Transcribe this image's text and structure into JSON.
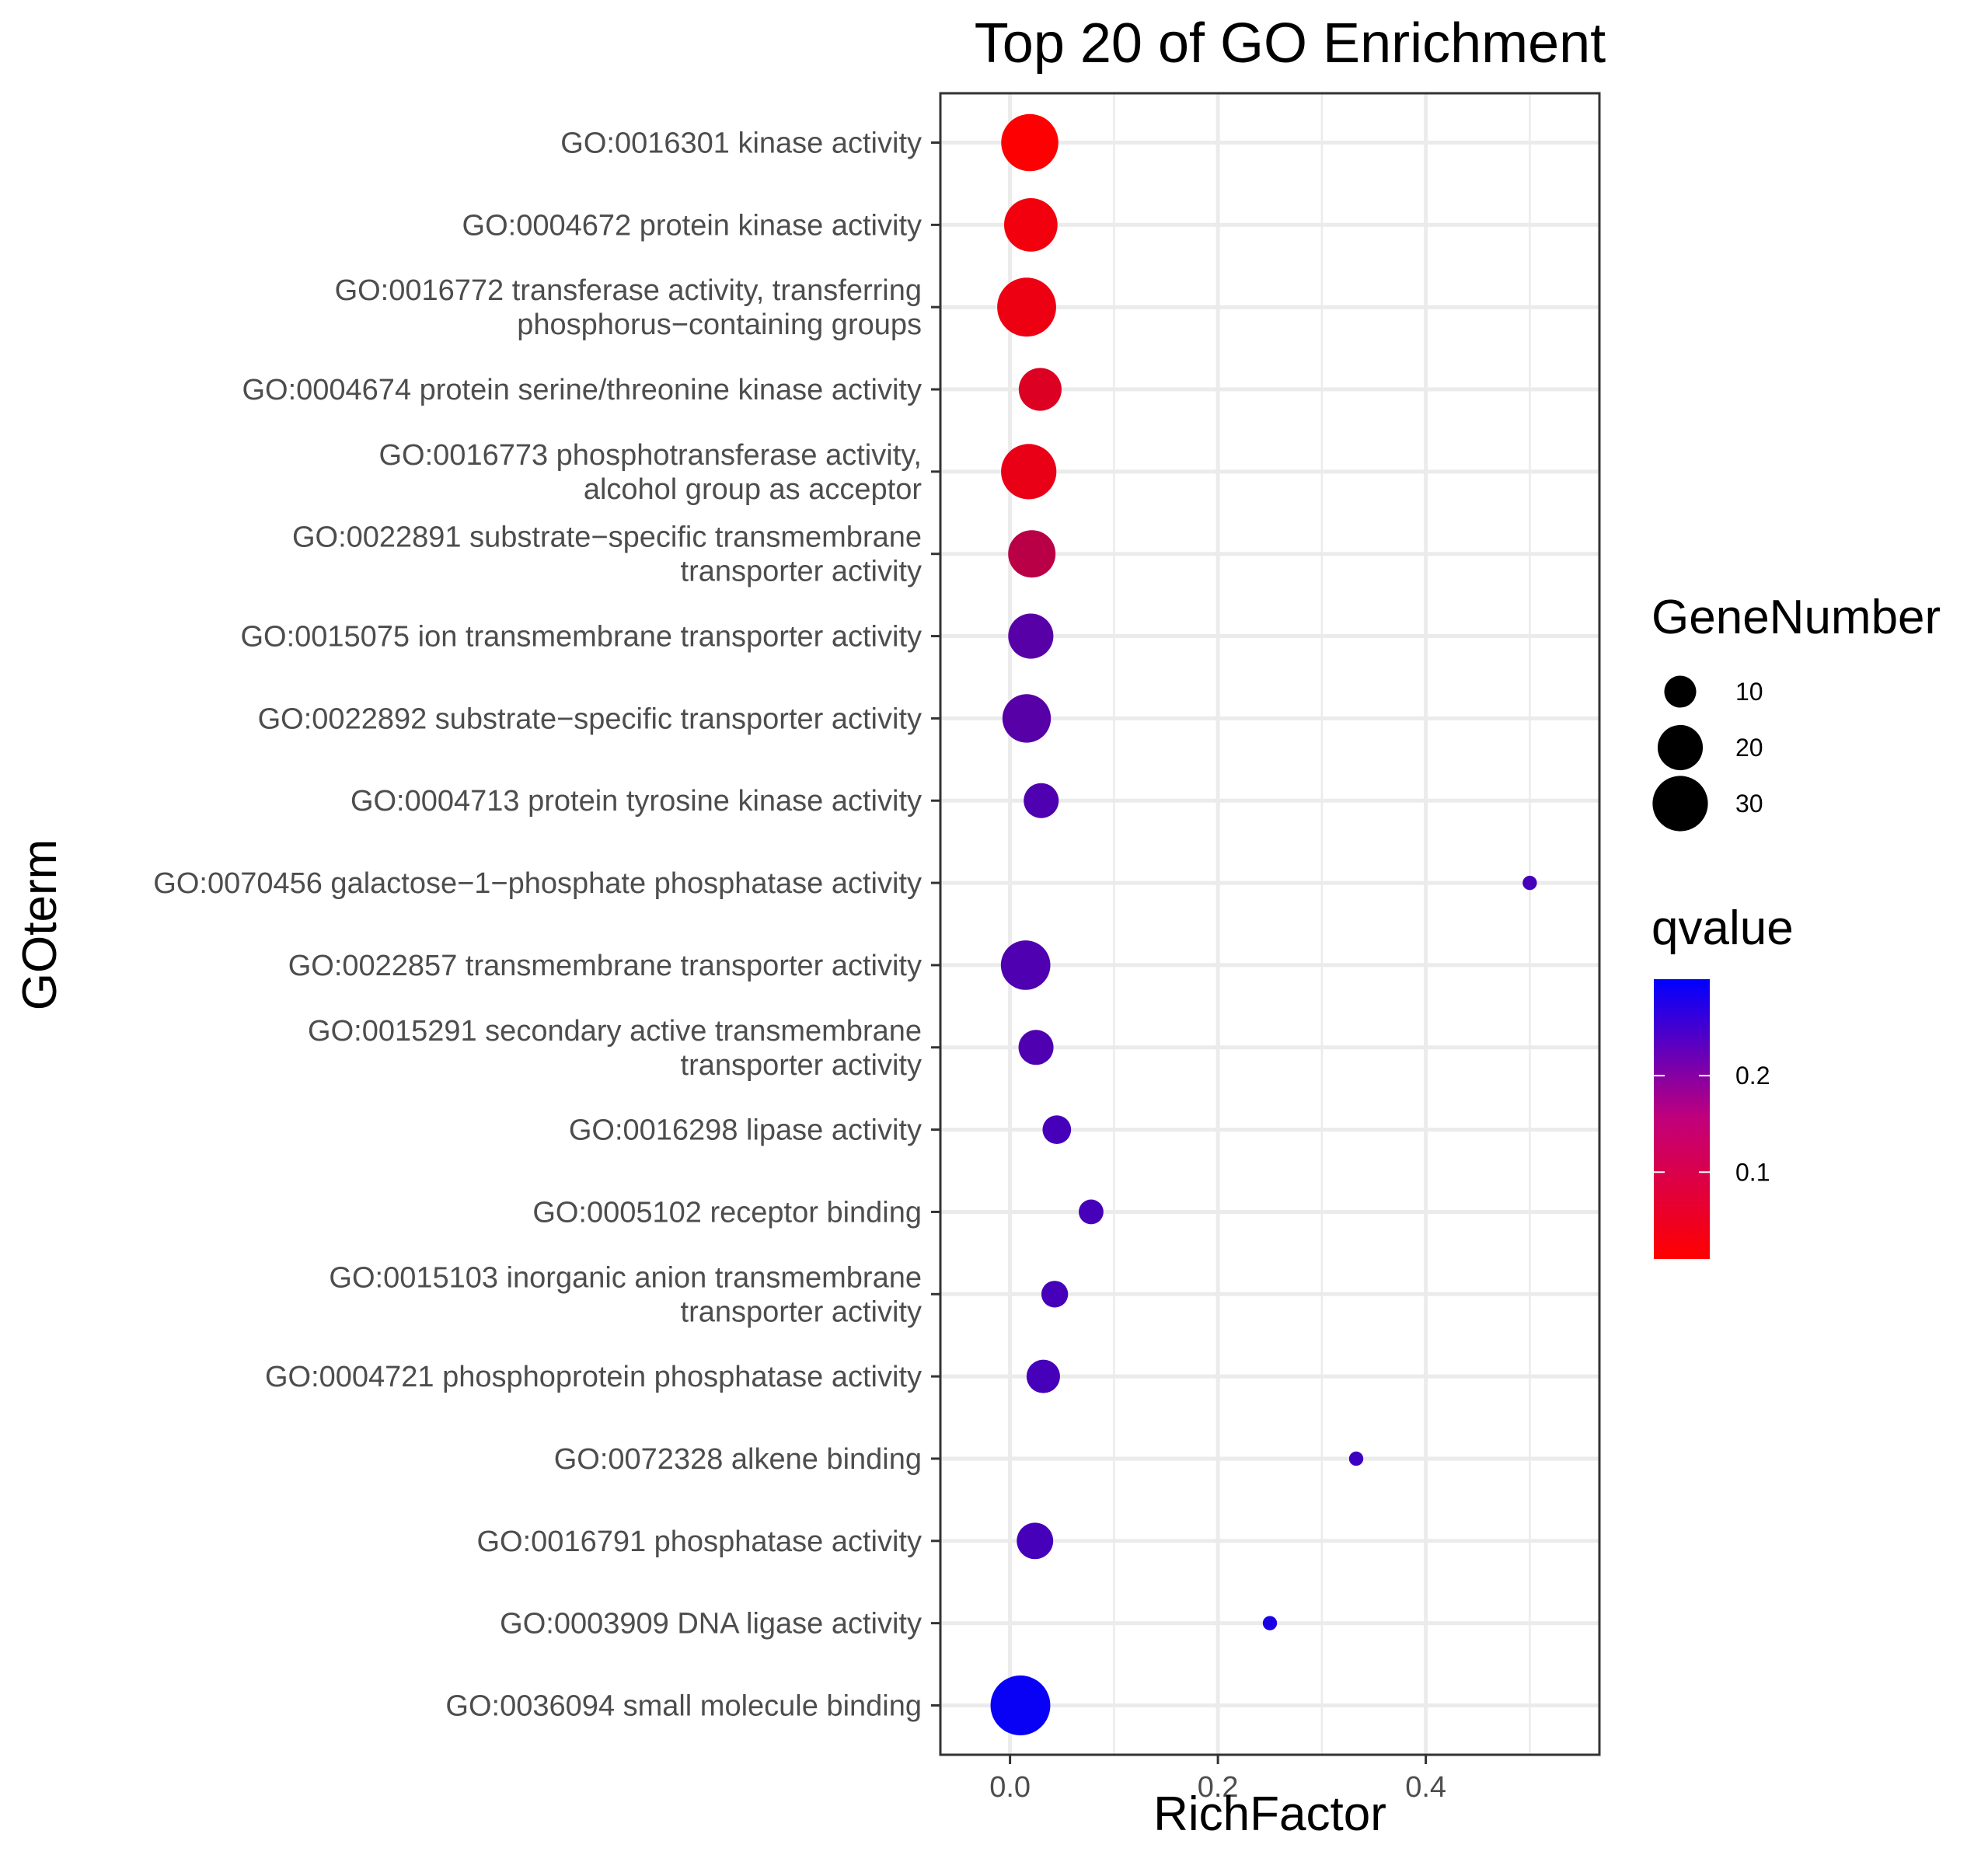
{
  "chart_data": {
    "type": "scatter",
    "title": "Top 20 of GO Enrichment",
    "xlabel": "RichFactor",
    "ylabel": "GOterm",
    "xlim": [
      -0.067,
      0.567
    ],
    "x_ticks": [
      0.0,
      0.2,
      0.4
    ],
    "x_tick_labels": [
      "0.0",
      "0.2",
      "0.4"
    ],
    "grid": true,
    "legend_placement": "right",
    "size_legend": {
      "title": "GeneNumber",
      "values": [
        10,
        20,
        30
      ],
      "labels": [
        "10",
        "20",
        "30"
      ]
    },
    "color_legend": {
      "title": "qvalue",
      "range": [
        0.01,
        0.3
      ],
      "ticks": [
        0.1,
        0.2
      ],
      "tick_labels": [
        "0.1",
        "0.2"
      ],
      "low_color": "#ff0000",
      "high_color": "#0000ff"
    },
    "points": [
      {
        "term": [
          "GO:0016301 kinase activity"
        ],
        "x": 0.019,
        "gene_number": 32,
        "qvalue": 0.012
      },
      {
        "term": [
          "GO:0004672 protein kinase activity"
        ],
        "x": 0.02,
        "gene_number": 28,
        "qvalue": 0.025
      },
      {
        "term": [
          "GO:0016772 transferase activity, transferring",
          "phosphorus−containing groups"
        ],
        "x": 0.016,
        "gene_number": 34,
        "qvalue": 0.03
      },
      {
        "term": [
          "GO:0004674 protein serine/threonine kinase activity"
        ],
        "x": 0.029,
        "gene_number": 18,
        "qvalue": 0.05
      },
      {
        "term": [
          "GO:0016773 phosphotransferase activity,",
          "alcohol group as acceptor"
        ],
        "x": 0.018,
        "gene_number": 30,
        "qvalue": 0.035
      },
      {
        "term": [
          "GO:0022891 substrate−specific transmembrane",
          "transporter activity"
        ],
        "x": 0.021,
        "gene_number": 22,
        "qvalue": 0.09
      },
      {
        "term": [
          "GO:0015075 ion transmembrane transporter activity"
        ],
        "x": 0.02,
        "gene_number": 20,
        "qvalue": 0.2
      },
      {
        "term": [
          "GO:0022892 substrate−specific transporter activity"
        ],
        "x": 0.016,
        "gene_number": 23,
        "qvalue": 0.2
      },
      {
        "term": [
          "GO:0004713 protein tyrosine kinase activity"
        ],
        "x": 0.03,
        "gene_number": 12,
        "qvalue": 0.21
      },
      {
        "term": [
          "GO:0070456 galactose−1−phosphate phosphatase activity"
        ],
        "x": 0.5,
        "gene_number": 2,
        "qvalue": 0.22
      },
      {
        "term": [
          "GO:0022857 transmembrane transporter activity"
        ],
        "x": 0.015,
        "gene_number": 24,
        "qvalue": 0.21
      },
      {
        "term": [
          "GO:0015291 secondary active transmembrane",
          "transporter activity"
        ],
        "x": 0.025,
        "gene_number": 12,
        "qvalue": 0.21
      },
      {
        "term": [
          "GO:0016298 lipase activity"
        ],
        "x": 0.045,
        "gene_number": 8,
        "qvalue": 0.22
      },
      {
        "term": [
          "GO:0005102 receptor binding"
        ],
        "x": 0.078,
        "gene_number": 6,
        "qvalue": 0.22
      },
      {
        "term": [
          "GO:0015103 inorganic anion transmembrane",
          "transporter activity"
        ],
        "x": 0.043,
        "gene_number": 7,
        "qvalue": 0.22
      },
      {
        "term": [
          "GO:0004721 phosphoprotein phosphatase activity"
        ],
        "x": 0.032,
        "gene_number": 11,
        "qvalue": 0.22
      },
      {
        "term": [
          "GO:0072328 alkene binding"
        ],
        "x": 0.333,
        "gene_number": 2,
        "qvalue": 0.23
      },
      {
        "term": [
          "GO:0016791 phosphatase activity"
        ],
        "x": 0.024,
        "gene_number": 13,
        "qvalue": 0.22
      },
      {
        "term": [
          "GO:0003909 DNA ligase activity"
        ],
        "x": 0.25,
        "gene_number": 2,
        "qvalue": 0.27
      },
      {
        "term": [
          "GO:0036094 small molecule binding"
        ],
        "x": 0.01,
        "gene_number": 35,
        "qvalue": 0.29
      }
    ]
  }
}
